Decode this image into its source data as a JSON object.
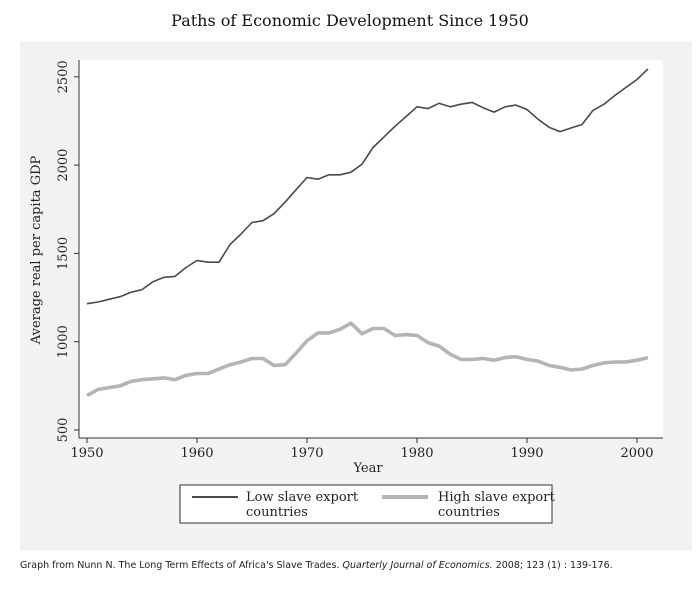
{
  "chart_data": {
    "type": "line",
    "title": "Paths of Economic Development Since 1950",
    "xlabel": "Year",
    "ylabel": "Average real per capita GDP",
    "xlim": [
      1950,
      2001
    ],
    "ylim": [
      500,
      2550
    ],
    "xticks": [
      1950,
      1960,
      1970,
      1980,
      1990,
      2000
    ],
    "yticks": [
      500,
      1000,
      1500,
      2000,
      2500
    ],
    "grid": false,
    "legend_position": "bottom",
    "x": [
      1950,
      1951,
      1952,
      1953,
      1954,
      1955,
      1956,
      1957,
      1958,
      1959,
      1960,
      1961,
      1962,
      1963,
      1964,
      1965,
      1966,
      1967,
      1968,
      1969,
      1970,
      1971,
      1972,
      1973,
      1974,
      1975,
      1976,
      1977,
      1978,
      1979,
      1980,
      1981,
      1982,
      1983,
      1984,
      1985,
      1986,
      1987,
      1988,
      1989,
      1990,
      1991,
      1992,
      1993,
      1994,
      1995,
      1996,
      1997,
      1998,
      1999,
      2000,
      2001
    ],
    "series": [
      {
        "name": "Low slave export countries",
        "color": "#4a4a4a",
        "values": [
          1215,
          1225,
          1240,
          1255,
          1280,
          1295,
          1340,
          1365,
          1370,
          1420,
          1460,
          1450,
          1450,
          1550,
          1610,
          1675,
          1685,
          1725,
          1790,
          1860,
          1930,
          1920,
          1945,
          1945,
          1960,
          2005,
          2100,
          2160,
          2220,
          2275,
          2330,
          2320,
          2350,
          2330,
          2345,
          2355,
          2325,
          2300,
          2330,
          2340,
          2315,
          2260,
          2215,
          2190,
          2210,
          2230,
          2310,
          2345,
          2395,
          2440,
          2485,
          2545
        ]
      },
      {
        "name": "High slave export countries",
        "color": "#b4b4b4",
        "values": [
          695,
          730,
          740,
          750,
          775,
          785,
          790,
          795,
          785,
          810,
          820,
          820,
          845,
          870,
          885,
          905,
          905,
          865,
          870,
          935,
          1005,
          1050,
          1050,
          1070,
          1105,
          1045,
          1075,
          1075,
          1035,
          1040,
          1035,
          995,
          975,
          930,
          900,
          900,
          905,
          895,
          910,
          915,
          900,
          890,
          865,
          855,
          840,
          845,
          865,
          880,
          885,
          885,
          895,
          910
        ]
      }
    ]
  },
  "legend": {
    "items": [
      {
        "line1": "Low slave export",
        "line2": "countries"
      },
      {
        "line1": "High slave export",
        "line2": "countries"
      }
    ]
  },
  "caption": {
    "prefix": "Graph from Nunn N. The Long Term Effects of Africa's Slave Trades. ",
    "journal": "Quarterly Journal of Economics.",
    "suffix": " 2008; 123 (1) : 139-176."
  },
  "colors": {
    "panel_bg": "#f2f2f2",
    "plot_bg": "#ffffff",
    "axis": "#333333"
  }
}
